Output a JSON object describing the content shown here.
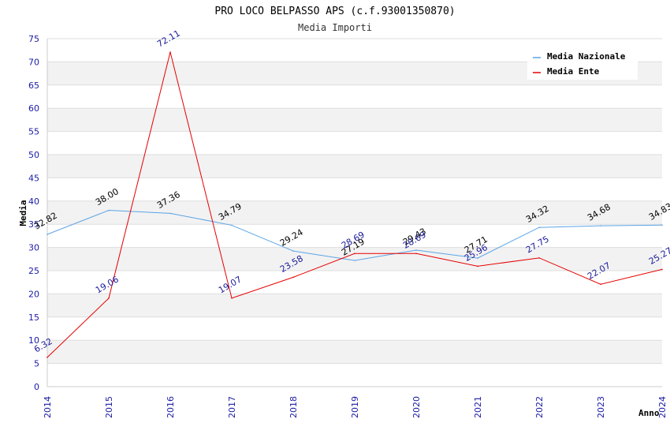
{
  "chart_data": {
    "type": "line",
    "title": "PRO LOCO BELPASSO APS (c.f.93001350870)",
    "subtitle": "Media Importi",
    "xlabel": "Anno",
    "ylabel": "Media",
    "ylim": [
      0,
      75
    ],
    "yticks": [
      "0",
      "5",
      "10",
      "15",
      "20",
      "25",
      "30",
      "35",
      "40",
      "45",
      "50",
      "55",
      "60",
      "65",
      "70",
      "75"
    ],
    "x": [
      "2014",
      "2015",
      "2016",
      "2017",
      "2018",
      "2019",
      "2020",
      "2021",
      "2022",
      "2023",
      "2024"
    ],
    "grid": "horizontal bands",
    "legend_position": "top-right",
    "series": [
      {
        "name": "Media Nazionale",
        "color": "#5aa3e6",
        "values": [
          32.82,
          38.0,
          37.36,
          34.79,
          29.24,
          27.19,
          29.43,
          27.71,
          34.32,
          34.68,
          34.83
        ],
        "labels": [
          "32.82",
          "38.00",
          "37.36",
          "34.79",
          "29.24",
          "27.19",
          "29.43",
          "27.71",
          "34.32",
          "34.68",
          "34.83"
        ]
      },
      {
        "name": "Media Ente",
        "color": "#e60000",
        "values": [
          6.32,
          19.06,
          72.11,
          19.07,
          23.58,
          28.69,
          28.69,
          25.96,
          27.75,
          22.07,
          25.27
        ],
        "labels": [
          "6.32",
          "19.06",
          "72.11",
          "19.07",
          "23.58",
          "28.69",
          "28.69",
          "25.96",
          "27.75",
          "22.07",
          "25.27"
        ]
      }
    ]
  }
}
